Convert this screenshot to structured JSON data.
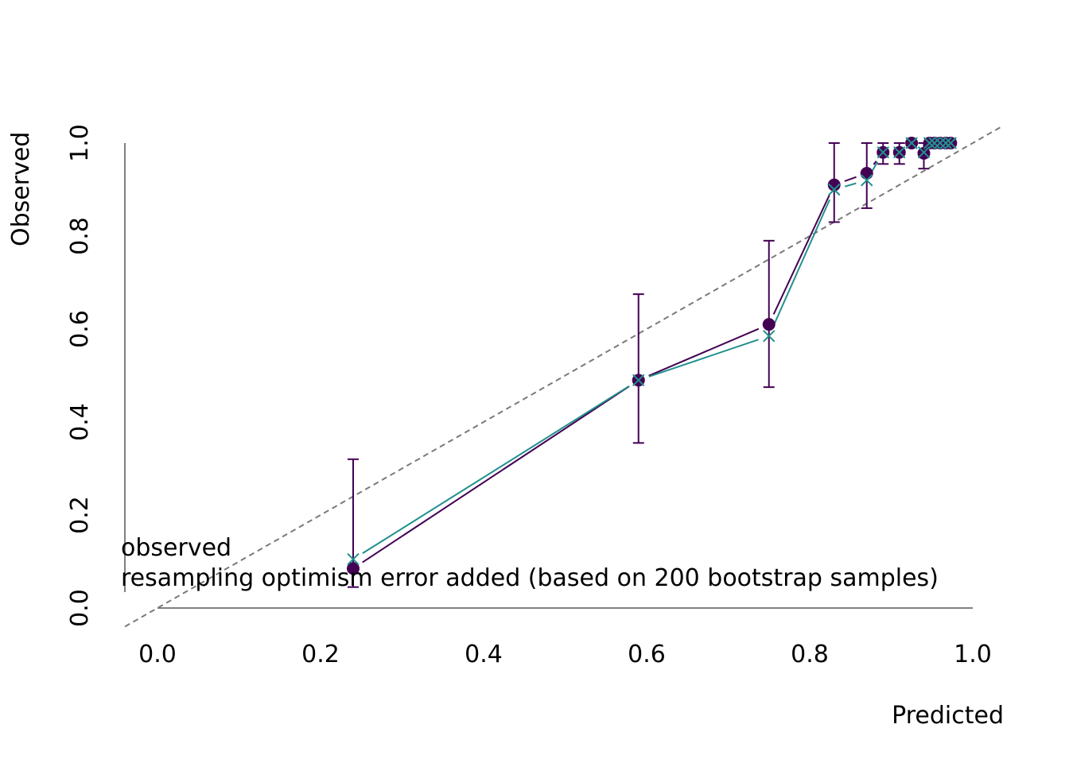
{
  "chart_data": {
    "type": "line",
    "xlabel": "Predicted",
    "ylabel": "Observed",
    "xlim": [
      0.0,
      1.0
    ],
    "ylim": [
      0.0,
      1.0
    ],
    "x_ticks": [
      "0.0",
      "0.2",
      "0.4",
      "0.6",
      "0.8",
      "1.0"
    ],
    "y_ticks": [
      "0.0",
      "0.2",
      "0.4",
      "0.6",
      "0.8",
      "1.0"
    ],
    "reference_line": "identity (dashed, gray)",
    "grid": false,
    "legend_placement": "bottom-left",
    "series": [
      {
        "name": "observed",
        "color": "#440154",
        "marker": "filled-circle",
        "x": [
          0.24,
          0.59,
          0.75,
          0.83,
          0.87,
          0.89,
          0.91,
          0.925,
          0.94,
          0.947,
          0.953,
          0.96,
          0.967,
          0.973
        ],
        "y": [
          0.085,
          0.49,
          0.61,
          0.91,
          0.935,
          0.98,
          0.98,
          1.0,
          0.978,
          1.0,
          1.0,
          1.0,
          1.0,
          1.0
        ],
        "ci_low": [
          0.045,
          0.355,
          0.475,
          0.83,
          0.86,
          0.955,
          0.955,
          1.0,
          0.945,
          1.0,
          1.0,
          1.0,
          1.0,
          1.0
        ],
        "ci_high": [
          0.32,
          0.675,
          0.79,
          1.0,
          1.0,
          1.0,
          1.0,
          1.0,
          1.0,
          1.0,
          1.0,
          1.0,
          1.0,
          1.0
        ]
      },
      {
        "name": "resampling optimism error added (based on 200 bootstrap samples)",
        "color": "#21908C",
        "marker": "x-cross",
        "x": [
          0.24,
          0.59,
          0.75,
          0.83,
          0.87,
          0.89,
          0.91,
          0.925,
          0.94,
          0.947,
          0.953,
          0.96,
          0.967,
          0.973
        ],
        "y": [
          0.105,
          0.49,
          0.585,
          0.9,
          0.92,
          0.98,
          0.98,
          1.0,
          0.98,
          1.0,
          1.0,
          1.0,
          1.0,
          1.0
        ]
      }
    ],
    "colors": {
      "axis": "#808080",
      "reference": "#7a7a7a",
      "observed": "#440154",
      "resampled": "#21908C"
    }
  }
}
